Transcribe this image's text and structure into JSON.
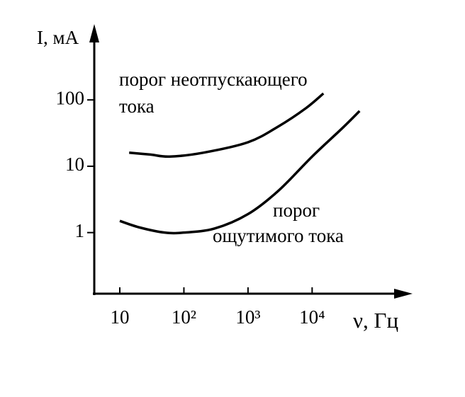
{
  "chart_data": {
    "type": "line",
    "ylabel": "I, мА",
    "xlabel": "ν, Гц",
    "xlog": true,
    "ylog": true,
    "xlim": [
      4,
      350000
    ],
    "ylim": [
      0.12,
      1200
    ],
    "xticks": [
      10,
      {
        "value": 100,
        "label": "10²"
      },
      {
        "value": 1000,
        "label": "10³"
      },
      {
        "value": 10000,
        "label": "10⁴"
      }
    ],
    "yticks": [
      1,
      10,
      100
    ],
    "series": [
      {
        "label_lines": [
          "порог неотпускающего",
          "тока"
        ],
        "color": "#000000",
        "x": [
          14,
          30,
          60,
          200,
          1000,
          3000,
          8000,
          15000
        ],
        "values": [
          16,
          15,
          14,
          16,
          23,
          40,
          75,
          125
        ]
      },
      {
        "label_lines": [
          "порог",
          "ощутимого тока"
        ],
        "color": "#000000",
        "x": [
          10,
          20,
          50,
          100,
          300,
          1000,
          3000,
          10000,
          30000,
          55000
        ],
        "values": [
          1.5,
          1.2,
          1.0,
          1.0,
          1.15,
          1.9,
          4.3,
          14,
          38,
          68
        ]
      }
    ]
  }
}
